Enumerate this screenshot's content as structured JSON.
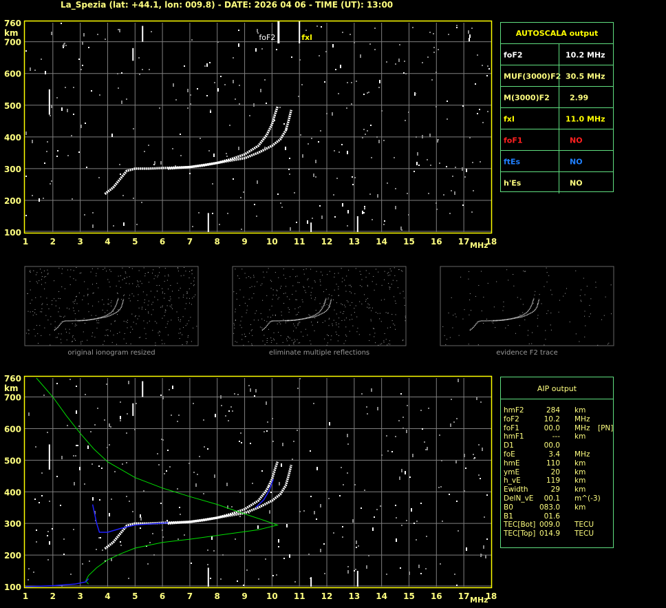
{
  "header": {
    "title": "La_Spezia (lat: +44.1, lon: 009.8) - DATE: 2026 04 06 - TIME (UT): 13:00"
  },
  "colors": {
    "frame": "#ffff00",
    "grid": "#808080",
    "table_border": "#60e080",
    "text": "#ffff80",
    "trace": "#ffffff",
    "profile": "#00e000",
    "fit": "#2020ff",
    "foF1": "#ff2020",
    "ftEs": "#2080ff"
  },
  "chart_data": [
    {
      "type": "scatter",
      "title": "",
      "xlabel": "MHz",
      "ylabel": "km",
      "xlim": [
        1,
        18
      ],
      "ylim": [
        100,
        760
      ],
      "x_ticks": [
        "1",
        "2",
        "3",
        "4",
        "5",
        "6",
        "7",
        "8",
        "9",
        "10",
        "11",
        "12",
        "13",
        "14",
        "15",
        "16",
        "17",
        "18"
      ],
      "y_ticks": [
        "100",
        "200",
        "300",
        "400",
        "500",
        "600",
        "700",
        "760"
      ],
      "grid": true,
      "markers": [
        {
          "label": "foF2",
          "freq": 10.2
        },
        {
          "label": "fxl",
          "freq": 11.0
        }
      ],
      "series": [
        {
          "values": [
            [
              3.9,
              220
            ],
            [
              4.2,
              240
            ],
            [
              4.5,
              272
            ],
            [
              4.7,
              293
            ],
            [
              5,
              300
            ],
            [
              5.5,
              300
            ],
            [
              6,
              302
            ],
            [
              7,
              305
            ],
            [
              7.5,
              310
            ],
            [
              8,
              318
            ],
            [
              8.5,
              330
            ],
            [
              9,
              345
            ],
            [
              9.5,
              372
            ],
            [
              9.8,
              405
            ],
            [
              10,
              440
            ],
            [
              10.1,
              470
            ],
            [
              10.2,
              495
            ]
          ]
        },
        {
          "values": [
            [
              6.2,
              300
            ],
            [
              7,
              305
            ],
            [
              8,
              318
            ],
            [
              9,
              333
            ],
            [
              9.5,
              350
            ],
            [
              10,
              372
            ],
            [
              10.3,
              392
            ],
            [
              10.5,
              420
            ],
            [
              10.6,
              450
            ],
            [
              10.7,
              485
            ]
          ]
        }
      ]
    },
    {
      "type": "line",
      "title": "",
      "xlabel": "MHz",
      "ylabel": "km",
      "xlim": [
        1,
        18
      ],
      "ylim": [
        100,
        760
      ],
      "x_ticks": [
        "1",
        "2",
        "3",
        "4",
        "5",
        "6",
        "7",
        "8",
        "9",
        "10",
        "11",
        "12",
        "13",
        "14",
        "15",
        "16",
        "17",
        "18"
      ],
      "y_ticks": [
        "100",
        "200",
        "300",
        "400",
        "500",
        "600",
        "700",
        "760"
      ],
      "grid": true,
      "series": [
        {
          "values": [
            [
              3.9,
              220
            ],
            [
              4.2,
              240
            ],
            [
              4.5,
              272
            ],
            [
              4.7,
              293
            ],
            [
              5,
              300
            ],
            [
              5.5,
              300
            ],
            [
              6,
              302
            ],
            [
              7,
              305
            ],
            [
              7.5,
              310
            ],
            [
              8,
              318
            ],
            [
              8.5,
              330
            ],
            [
              9,
              345
            ],
            [
              9.5,
              372
            ],
            [
              9.8,
              405
            ],
            [
              10,
              440
            ],
            [
              10.1,
              470
            ],
            [
              10.2,
              495
            ]
          ]
        },
        {
          "values": [
            [
              6.2,
              300
            ],
            [
              7,
              305
            ],
            [
              8,
              318
            ],
            [
              9,
              333
            ],
            [
              9.5,
              350
            ],
            [
              10,
              372
            ],
            [
              10.3,
              392
            ],
            [
              10.5,
              420
            ],
            [
              10.6,
              450
            ],
            [
              10.7,
              485
            ]
          ]
        },
        {
          "values": [
            [
              1.4,
              760
            ],
            [
              2,
              700
            ],
            [
              2.5,
              640
            ],
            [
              3,
              585
            ],
            [
              3.5,
              535
            ],
            [
              4,
              495
            ],
            [
              5,
              445
            ],
            [
              6,
              412
            ],
            [
              7,
              385
            ],
            [
              8,
              360
            ],
            [
              9,
              330
            ],
            [
              9.7,
              310
            ],
            [
              10.2,
              295
            ],
            [
              9.5,
              280
            ],
            [
              8,
              262
            ],
            [
              7,
              250
            ],
            [
              6,
              240
            ],
            [
              5,
              222
            ],
            [
              4.5,
              205
            ],
            [
              4,
              185
            ],
            [
              3.6,
              160
            ],
            [
              3.3,
              135
            ],
            [
              3.2,
              118
            ],
            [
              3.3,
              108
            ]
          ]
        },
        {
          "values": [
            [
              1,
              100
            ],
            [
              2,
              103
            ],
            [
              2.8,
              108
            ],
            [
              3.2,
              115
            ],
            [
              3.3,
              125
            ]
          ]
        },
        {
          "values": [
            [
              3.45,
              360
            ],
            [
              3.6,
              300
            ],
            [
              3.7,
              272
            ],
            [
              4,
              272
            ],
            [
              4.5,
              285
            ],
            [
              5,
              295
            ],
            [
              5.5,
              298
            ],
            [
              6.2,
              302
            ]
          ]
        },
        {
          "values": [
            [
              9.4,
              350
            ],
            [
              9.7,
              375
            ],
            [
              9.9,
              405
            ],
            [
              10.05,
              440
            ]
          ]
        }
      ]
    }
  ],
  "thumbnails": [
    {
      "caption": "original ionogram resized"
    },
    {
      "caption": "eliminate multiple reflections"
    },
    {
      "caption": "evidence F2 trace"
    }
  ],
  "autoscala": {
    "title": "AUTOSCALA output",
    "rows": [
      {
        "label": "foF2",
        "value": "10.2 MHz",
        "color": "#ffffff"
      },
      {
        "label": "MUF(3000)F2",
        "value": "30.5 MHz",
        "color": "#ffff80"
      },
      {
        "label": "M(3000)F2",
        "value": "2.99",
        "color": "#ffff80"
      },
      {
        "label": "fxI",
        "value": "11.0 MHz",
        "color": "#ffff00"
      },
      {
        "label": "foF1",
        "value": "NO",
        "color": "#ff2020"
      },
      {
        "label": "ftEs",
        "value": "NO",
        "color": "#2080ff"
      },
      {
        "label": "h'Es",
        "value": "NO",
        "color": "#ffff80"
      }
    ]
  },
  "aip": {
    "title": "AIP output",
    "rows": [
      {
        "name": "hmF2",
        "value": "284",
        "unit": "km",
        "extra": ""
      },
      {
        "name": "foF2",
        "value": "10.2",
        "unit": "MHz",
        "extra": ""
      },
      {
        "name": "foF1",
        "value": "00.0",
        "unit": "MHz",
        "extra": "[PN]"
      },
      {
        "name": "hmF1",
        "value": "---",
        "unit": "km",
        "extra": ""
      },
      {
        "name": "D1",
        "value": "00.0",
        "unit": "",
        "extra": ""
      },
      {
        "name": "foE",
        "value": "3.4",
        "unit": "MHz",
        "extra": ""
      },
      {
        "name": "hmE",
        "value": "110",
        "unit": "km",
        "extra": ""
      },
      {
        "name": "ymE",
        "value": "20",
        "unit": "km",
        "extra": ""
      },
      {
        "name": "h_vE",
        "value": "119",
        "unit": "km",
        "extra": ""
      },
      {
        "name": "Ewidth",
        "value": "29",
        "unit": "km",
        "extra": ""
      },
      {
        "name": "DelN_vE",
        "value": "00.1",
        "unit": "m^(-3)",
        "extra": ""
      },
      {
        "name": "B0",
        "value": "083.0",
        "unit": "km",
        "extra": ""
      },
      {
        "name": "B1",
        "value": "01.6",
        "unit": "",
        "extra": ""
      },
      {
        "name": "TEC[Bot]",
        "value": "009.0",
        "unit": "TECU",
        "extra": ""
      },
      {
        "name": "TEC[Top]",
        "value": "014.9",
        "unit": "TECU",
        "extra": ""
      }
    ]
  }
}
